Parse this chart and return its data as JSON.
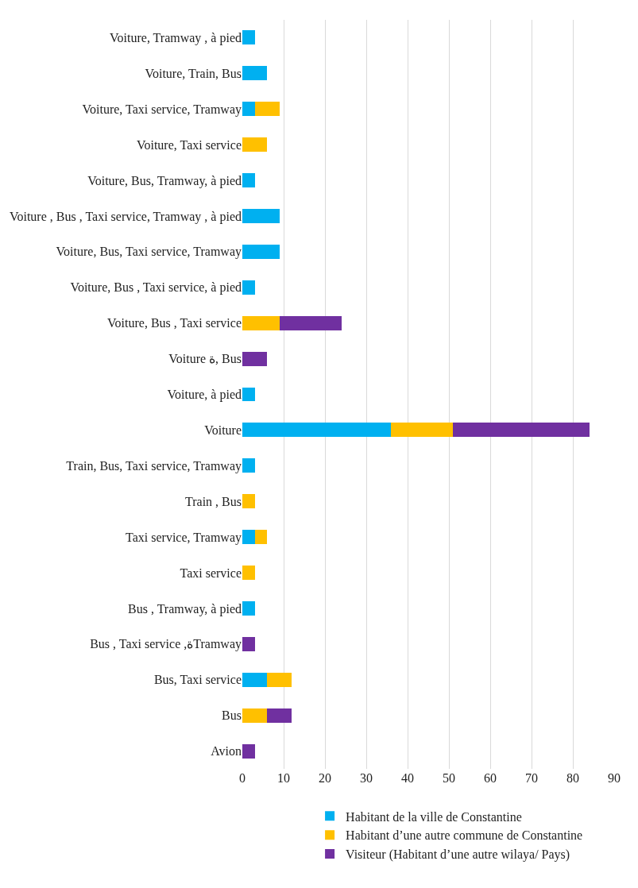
{
  "chart_data": {
    "type": "bar",
    "orientation": "horizontal",
    "stacked": true,
    "categories": [
      "Voiture, Tramway , à pied",
      "Voiture, Train, Bus",
      "Voiture, Taxi service, Tramway",
      "Voiture, Taxi service",
      "Voiture, Bus, Tramway, à pied",
      "Voiture , Bus , Taxi service, Tramway , à pied",
      "Voiture, Bus, Taxi service, Tramway",
      "Voiture, Bus , Taxi service, à pied",
      "Voiture, Bus , Taxi service",
      "Voiture ة, Bus",
      "Voiture, à pied",
      "Voiture",
      "Train, Bus, Taxi service, Tramway",
      "Train , Bus",
      "Taxi service, Tramway",
      "Taxi service",
      "Bus , Tramway, à pied",
      "Bus , Taxi service ,ةTramway",
      "Bus, Taxi service",
      "Bus",
      "Avion"
    ],
    "series": [
      {
        "name": "Habitant de la ville de Constantine",
        "color": "#00b0f0",
        "values": [
          3,
          6,
          3,
          null,
          3,
          9,
          9,
          3,
          null,
          null,
          3,
          36,
          3,
          null,
          3,
          null,
          3,
          null,
          6,
          null,
          null
        ]
      },
      {
        "name": "Habitant d’une autre commune de Constantine",
        "color": "#ffc000",
        "values": [
          null,
          null,
          6,
          6,
          null,
          null,
          null,
          null,
          9,
          null,
          null,
          15,
          null,
          3,
          3,
          3,
          null,
          null,
          6,
          6,
          null
        ]
      },
      {
        "name": "Visiteur (Habitant d’une autre wilaya/ Pays)",
        "color": "#7030a0",
        "values": [
          null,
          null,
          null,
          null,
          null,
          null,
          null,
          null,
          15,
          6,
          null,
          33,
          null,
          null,
          null,
          null,
          null,
          3,
          null,
          6,
          3
        ]
      }
    ],
    "xlim": [
      0,
      90
    ],
    "xticks": [
      0,
      10,
      20,
      30,
      40,
      50,
      60,
      70,
      80,
      90
    ],
    "grid": "x",
    "legend": "bottom"
  }
}
